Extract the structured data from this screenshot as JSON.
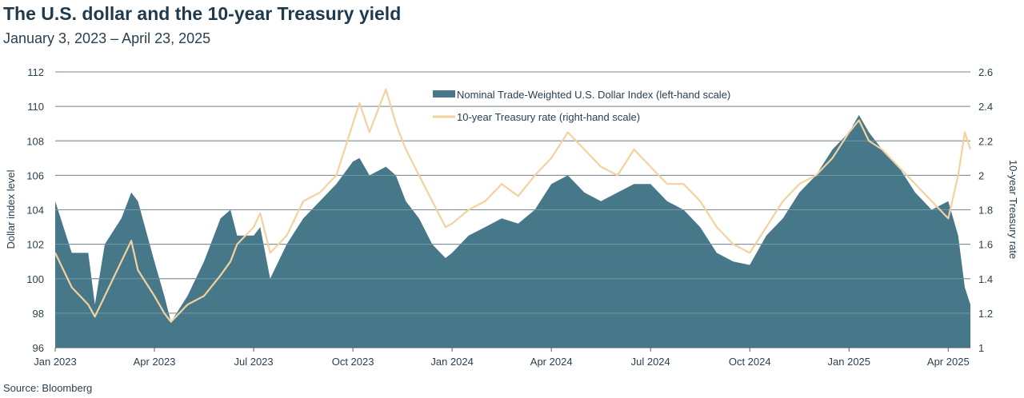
{
  "chart_data": {
    "type": "area+line",
    "title": "The U.S. dollar and the 10-year Treasury yield",
    "subtitle": "January 3, 2023 – April 23, 2025",
    "source": "Source: Bloomberg",
    "ylabel_left": "Dollar index level",
    "ylabel_right": "10-year Treasury rate",
    "ylim_left": [
      96,
      112
    ],
    "ylim_right": [
      1,
      2.6
    ],
    "yticks_left": [
      "96",
      "98",
      "100",
      "102",
      "104",
      "106",
      "108",
      "110",
      "112"
    ],
    "yticks_right": [
      "1",
      "1.2",
      "1.4",
      "1.6",
      "1.8",
      "2",
      "2.2",
      "2.4",
      "2.6"
    ],
    "xlabel": "",
    "x_unit": "months since Jan 2023",
    "xlim": [
      0,
      27.67
    ],
    "xticks": [
      {
        "x": 0,
        "label": "Jan 2023"
      },
      {
        "x": 3,
        "label": "Apr 2023"
      },
      {
        "x": 6,
        "label": "Jul 2023"
      },
      {
        "x": 9,
        "label": "Oct 2023"
      },
      {
        "x": 12,
        "label": "Jan 2024"
      },
      {
        "x": 15,
        "label": "Apr 2024"
      },
      {
        "x": 18,
        "label": "Jul 2024"
      },
      {
        "x": 21,
        "label": "Oct 2024"
      },
      {
        "x": 24,
        "label": "Jan 2025"
      },
      {
        "x": 27,
        "label": "Apr 2025"
      }
    ],
    "grid": true,
    "legend_position": "top-center",
    "colors": {
      "dollar": "#467889",
      "treasury": "#f2d29e",
      "grid": "#51606b",
      "text": "#1f3a4d"
    },
    "x": [
      0,
      0.5,
      1.0,
      1.2,
      1.5,
      2.0,
      2.3,
      2.5,
      3.0,
      3.3,
      3.5,
      4.0,
      4.5,
      5.0,
      5.3,
      5.5,
      6.0,
      6.2,
      6.5,
      7.0,
      7.5,
      8.0,
      8.5,
      9.0,
      9.2,
      9.5,
      10.0,
      10.3,
      10.6,
      11.0,
      11.4,
      11.8,
      12.0,
      12.5,
      13.0,
      13.5,
      14.0,
      14.5,
      15.0,
      15.5,
      16.0,
      16.5,
      17.0,
      17.5,
      18.0,
      18.5,
      19.0,
      19.5,
      20.0,
      20.5,
      21.0,
      21.5,
      22.0,
      22.5,
      23.0,
      23.5,
      24.0,
      24.3,
      24.6,
      25.0,
      25.5,
      26.0,
      26.5,
      27.0,
      27.3,
      27.5,
      27.67
    ],
    "series": [
      {
        "name": "Nominal Trade-Weighted U.S. Dollar Index (left-hand scale)",
        "axis": "left",
        "style": "area",
        "values": [
          104.5,
          101.5,
          101.5,
          98.5,
          102,
          103.5,
          105,
          104.5,
          101,
          99,
          97.5,
          99,
          101,
          103.5,
          104,
          102.5,
          102.5,
          103,
          100,
          102,
          103.5,
          104.5,
          105.5,
          106.8,
          107,
          106,
          106.5,
          106,
          104.5,
          103.5,
          102,
          101.2,
          101.5,
          102.5,
          103,
          103.5,
          103.2,
          104,
          105.5,
          106,
          105,
          104.5,
          105,
          105.5,
          105.5,
          104.5,
          104,
          103,
          101.5,
          101,
          100.8,
          102.5,
          103.5,
          105,
          106,
          107.5,
          108.5,
          109.5,
          108.5,
          107.5,
          106.5,
          105,
          104,
          104.5,
          102.5,
          99.5,
          98.5
        ]
      },
      {
        "name": "10-year Treasury rate (right-hand scale)",
        "axis": "right",
        "style": "line",
        "values": [
          1.55,
          1.35,
          1.25,
          1.18,
          1.3,
          1.5,
          1.62,
          1.45,
          1.3,
          1.2,
          1.15,
          1.25,
          1.3,
          1.42,
          1.5,
          1.6,
          1.7,
          1.78,
          1.55,
          1.65,
          1.85,
          1.9,
          2.0,
          2.3,
          2.42,
          2.25,
          2.5,
          2.3,
          2.15,
          2.0,
          1.85,
          1.7,
          1.72,
          1.8,
          1.85,
          1.95,
          1.88,
          2.0,
          2.1,
          2.25,
          2.15,
          2.05,
          2.0,
          2.15,
          2.05,
          1.95,
          1.95,
          1.85,
          1.7,
          1.6,
          1.55,
          1.7,
          1.85,
          1.95,
          2.0,
          2.1,
          2.25,
          2.32,
          2.2,
          2.15,
          2.05,
          1.95,
          1.85,
          1.75,
          2.0,
          2.25,
          2.15
        ]
      }
    ]
  }
}
